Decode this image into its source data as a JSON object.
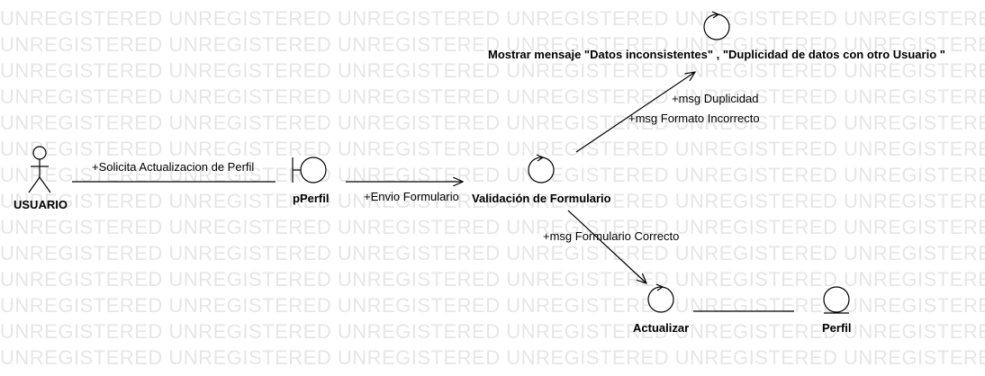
{
  "watermark": "UNREGISTERED",
  "actors": {
    "usuario": {
      "name": "USUARIO",
      "icon": "actor-stick-figure-icon"
    }
  },
  "objects": {
    "pperfil": {
      "name": "pPerfil",
      "kind": "boundary",
      "icon": "boundary-icon"
    },
    "validacion": {
      "name": "Validación de Formulario",
      "kind": "control",
      "icon": "control-icon"
    },
    "mostrar": {
      "name": "Mostrar mensaje \"Datos inconsistentes\" , \"Duplicidad de datos con otro Usuario \"",
      "kind": "control",
      "icon": "control-icon"
    },
    "actualizar": {
      "name": "Actualizar",
      "kind": "control",
      "icon": "control-icon"
    },
    "perfil": {
      "name": "Perfil",
      "kind": "entity",
      "icon": "entity-icon"
    }
  },
  "messages": {
    "solicita": "+Solicita Actualizacion de Perfil",
    "envio": "+Envio Formulario",
    "duplicidad": "+msg Duplicidad",
    "formato": "+msg Formato Incorrecto",
    "correcto": "+msg Formulario Correcto"
  }
}
